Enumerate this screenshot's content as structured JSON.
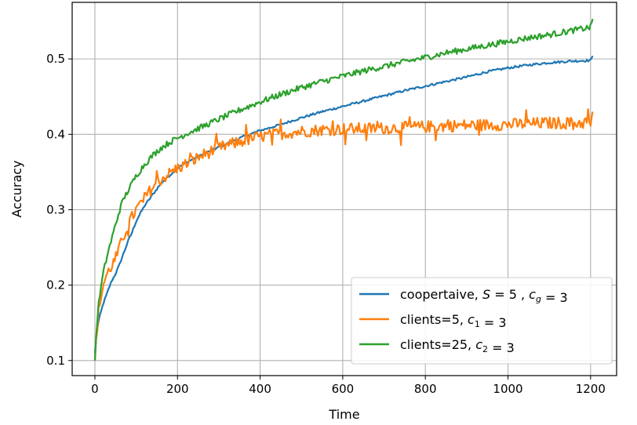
{
  "chart_data": {
    "type": "line",
    "title": "",
    "xlabel": "Time",
    "ylabel": "Accuracy",
    "xlim": [
      -55,
      1263
    ],
    "ylim": [
      0.08,
      0.575
    ],
    "xticks": [
      0,
      200,
      400,
      600,
      800,
      1000,
      1200
    ],
    "yticks": [
      0.1,
      0.2,
      0.3,
      0.4,
      0.5
    ],
    "xtick_labels": [
      "0",
      "200",
      "400",
      "600",
      "800",
      "1000",
      "1200"
    ],
    "ytick_labels": [
      "0.1",
      "0.2",
      "0.3",
      "0.4",
      "0.5"
    ],
    "grid": true,
    "legend_position": "lower-right",
    "series": [
      {
        "name": "coopertaive, S = 5 , c_g = 3",
        "legend_parts": [
          {
            "t": "coopertaive, ",
            "i": false
          },
          {
            "t": "S",
            "i": true
          },
          {
            "t": " = 5 , ",
            "i": false
          },
          {
            "t": "c",
            "i": true
          },
          {
            "t": "g",
            "i": true,
            "sub": true
          },
          {
            "t": " = 3",
            "i": false
          }
        ],
        "color": "#1f77b4",
        "noise": 0.0015,
        "x": [
          0,
          5,
          10,
          20,
          30,
          40,
          50,
          60,
          70,
          80,
          90,
          100,
          120,
          140,
          160,
          180,
          200,
          220,
          240,
          260,
          280,
          300,
          330,
          360,
          400,
          450,
          500,
          550,
          600,
          650,
          700,
          750,
          800,
          850,
          900,
          950,
          1000,
          1050,
          1100,
          1150,
          1200,
          1205
        ],
        "y": [
          0.11,
          0.14,
          0.155,
          0.175,
          0.19,
          0.205,
          0.215,
          0.228,
          0.243,
          0.258,
          0.27,
          0.285,
          0.305,
          0.32,
          0.335,
          0.345,
          0.355,
          0.362,
          0.368,
          0.373,
          0.378,
          0.383,
          0.39,
          0.397,
          0.405,
          0.413,
          0.422,
          0.43,
          0.437,
          0.444,
          0.451,
          0.458,
          0.464,
          0.47,
          0.476,
          0.483,
          0.488,
          0.492,
          0.495,
          0.497,
          0.498,
          0.504
        ]
      },
      {
        "name": "clients=5, c_1 = 3",
        "legend_parts": [
          {
            "t": "clients=5, ",
            "i": false
          },
          {
            "t": "c",
            "i": true
          },
          {
            "t": "1",
            "i": false,
            "sub": true
          },
          {
            "t": " = 3",
            "i": false
          }
        ],
        "color": "#ff7f0e",
        "noise": 0.008,
        "x": [
          0,
          5,
          10,
          20,
          30,
          40,
          50,
          60,
          80,
          100,
          120,
          140,
          160,
          180,
          200,
          230,
          260,
          300,
          350,
          400,
          450,
          500,
          550,
          600,
          700,
          800,
          900,
          1000,
          1100,
          1150,
          1200,
          1205
        ],
        "y": [
          0.1,
          0.14,
          0.17,
          0.2,
          0.215,
          0.225,
          0.235,
          0.25,
          0.28,
          0.3,
          0.315,
          0.33,
          0.34,
          0.348,
          0.355,
          0.363,
          0.372,
          0.382,
          0.39,
          0.397,
          0.401,
          0.404,
          0.406,
          0.407,
          0.408,
          0.41,
          0.412,
          0.413,
          0.415,
          0.415,
          0.415,
          0.43
        ]
      },
      {
        "name": "clients=25, c_2 = 3",
        "legend_parts": [
          {
            "t": "clients=25, ",
            "i": false
          },
          {
            "t": "c",
            "i": true
          },
          {
            "t": "2",
            "i": false,
            "sub": true
          },
          {
            "t": " = 3",
            "i": false
          }
        ],
        "color": "#2ca02c",
        "noise": 0.004,
        "x": [
          0,
          5,
          10,
          20,
          30,
          40,
          50,
          60,
          70,
          80,
          100,
          120,
          140,
          160,
          180,
          200,
          230,
          260,
          300,
          350,
          400,
          450,
          500,
          550,
          600,
          650,
          700,
          750,
          800,
          850,
          900,
          950,
          1000,
          1050,
          1100,
          1150,
          1200,
          1205
        ],
        "y": [
          0.1,
          0.15,
          0.18,
          0.215,
          0.24,
          0.26,
          0.28,
          0.3,
          0.315,
          0.325,
          0.345,
          0.36,
          0.372,
          0.382,
          0.389,
          0.395,
          0.403,
          0.41,
          0.42,
          0.432,
          0.443,
          0.453,
          0.462,
          0.47,
          0.477,
          0.484,
          0.49,
          0.496,
          0.502,
          0.508,
          0.513,
          0.518,
          0.523,
          0.528,
          0.532,
          0.537,
          0.542,
          0.553
        ]
      }
    ]
  }
}
